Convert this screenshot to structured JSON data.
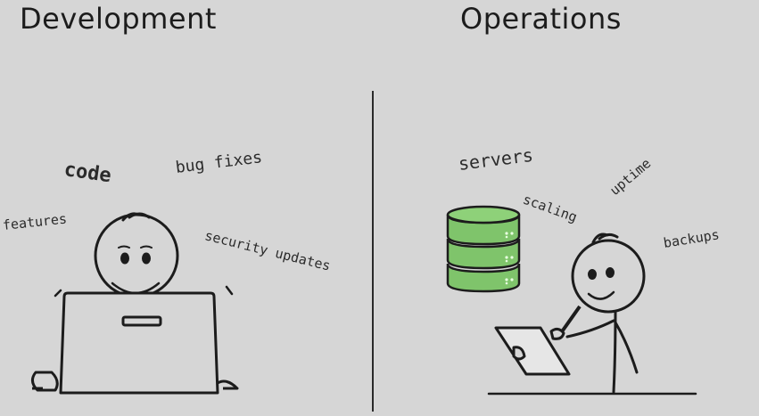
{
  "left": {
    "title": "Development",
    "words": {
      "code": "code",
      "bug_fixes": "bug fixes",
      "features": "features",
      "security_updates": "security updates"
    }
  },
  "right": {
    "title": "Operations",
    "words": {
      "servers": "servers",
      "scaling": "scaling",
      "uptime": "uptime",
      "backups": "backups"
    }
  },
  "colors": {
    "background": "#d6d6d6",
    "ink": "#1c1c1c",
    "server_green": "#7fc46b",
    "server_green_dark": "#5e9a4e"
  }
}
